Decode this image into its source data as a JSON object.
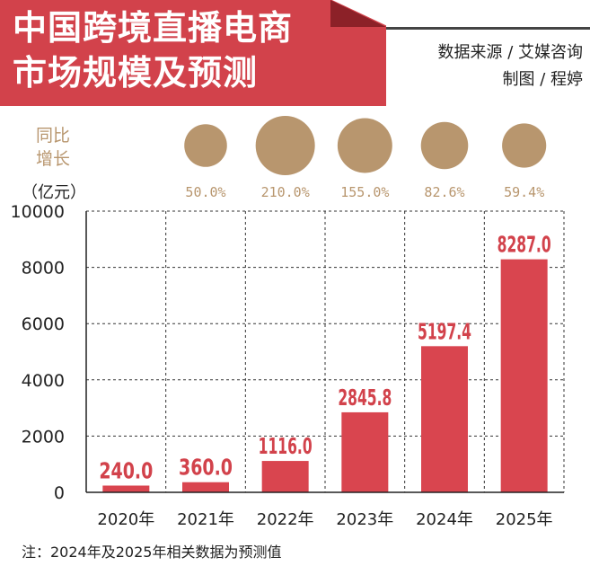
{
  "title_lines": [
    "中国跨境直播电商",
    "市场规模及预测"
  ],
  "source": "数据来源 / 艾媒咨询",
  "author": "制图 / 程婷",
  "growth_label_lines": [
    "同比",
    "增长"
  ],
  "unit_label": "（亿元）",
  "note": "注：2024年及2025年相关数据为预测值",
  "colors": {
    "bar": "#d9454f",
    "banner": "#d2424b",
    "bubble": "#b8966e",
    "label": "#d2424b",
    "grid": "#333333"
  },
  "chart_data": {
    "type": "bar",
    "categories": [
      "2020年",
      "2021年",
      "2022年",
      "2023年",
      "2024年",
      "2025年"
    ],
    "values": [
      240.0,
      360.0,
      1116.0,
      2845.8,
      5197.4,
      8287.0
    ],
    "value_labels": [
      "240.0",
      "360.0",
      "1116.0",
      "2845.8",
      "5197.4",
      "8287.0"
    ],
    "growth_rates": [
      "",
      "50.0%",
      "210.0%",
      "155.0%",
      "82.6%",
      "59.4%"
    ],
    "growth_values": [
      null,
      50.0,
      210.0,
      155.0,
      82.6,
      59.4
    ],
    "yticks": [
      0,
      2000,
      4000,
      6000,
      8000,
      10000
    ],
    "ylim": [
      0,
      10000
    ],
    "grid": "dashed",
    "legend": "none"
  }
}
